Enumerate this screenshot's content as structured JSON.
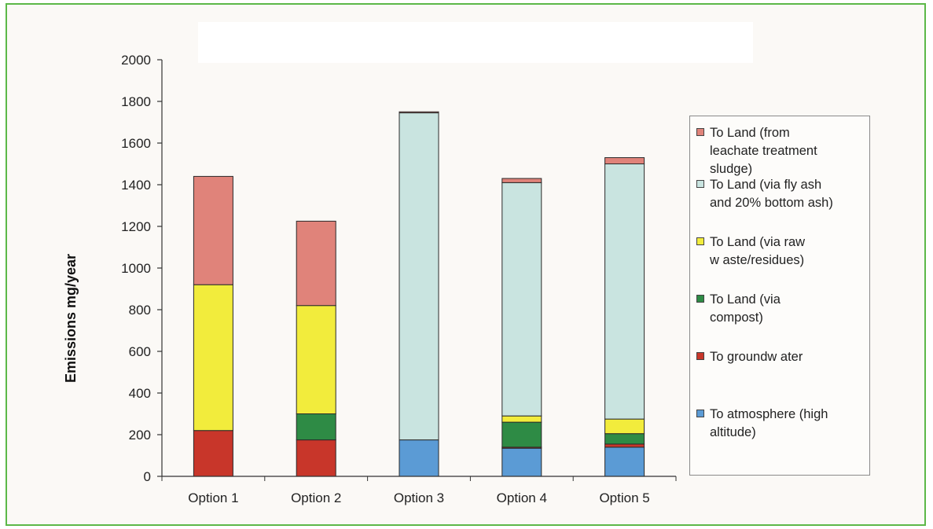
{
  "chart_data": {
    "type": "bar",
    "stacked": true,
    "title": "",
    "xlabel": "",
    "ylabel": "Emissions mg/year",
    "ylim": [
      0,
      2000
    ],
    "yticks": [
      0,
      200,
      400,
      600,
      800,
      1000,
      1200,
      1400,
      1600,
      1800,
      2000
    ],
    "categories": [
      "Option 1",
      "Option 2",
      "Option 3",
      "Option 4",
      "Option 5"
    ],
    "grid": false,
    "legend_position": "right",
    "series": [
      {
        "name": "To atmosphere (high altitude)",
        "color": "#5b9bd5",
        "values": [
          0,
          0,
          175,
          135,
          140
        ]
      },
      {
        "name": "To groundw ater",
        "color": "#c8362a",
        "values": [
          220,
          175,
          0,
          5,
          15
        ]
      },
      {
        "name": "To Land (via compost)",
        "color": "#2e8b45",
        "values": [
          0,
          125,
          0,
          120,
          50
        ]
      },
      {
        "name": "To Land (via raw w aste/residues)",
        "color": "#f2ec3c",
        "values": [
          700,
          520,
          0,
          30,
          70
        ]
      },
      {
        "name": "To Land (via fly ash and 20% bottom ash)",
        "color": "#c9e4e0",
        "values": [
          0,
          0,
          1570,
          1120,
          1225
        ]
      },
      {
        "name": "To Land (from leachate treatment sludge)",
        "color": "#e0837a",
        "values": [
          520,
          405,
          5,
          20,
          30
        ]
      }
    ],
    "legend": [
      {
        "label": "To Land (from leachate treatment sludge)",
        "lines": [
          "To Land (from",
          "leachate treatment",
          "sludge)"
        ],
        "color": "#e0837a"
      },
      {
        "label": "To Land (via fly ash and 20% bottom ash)",
        "lines": [
          "To Land (via fly ash",
          "and 20% bottom ash)"
        ],
        "color": "#c9e4e0"
      },
      {
        "label": "To Land (via raw w aste/residues)",
        "lines": [
          "To Land (via raw",
          "w aste/residues)"
        ],
        "color": "#f2ec3c"
      },
      {
        "label": "To Land (via compost)",
        "lines": [
          "To Land (via",
          "compost)"
        ],
        "color": "#2e8b45"
      },
      {
        "label": "To groundw ater",
        "lines": [
          "To groundw ater"
        ],
        "color": "#c8362a"
      },
      {
        "label": "To atmosphere (high altitude)",
        "lines": [
          "To atmosphere (high",
          "altitude)"
        ],
        "color": "#5b9bd5"
      }
    ]
  }
}
